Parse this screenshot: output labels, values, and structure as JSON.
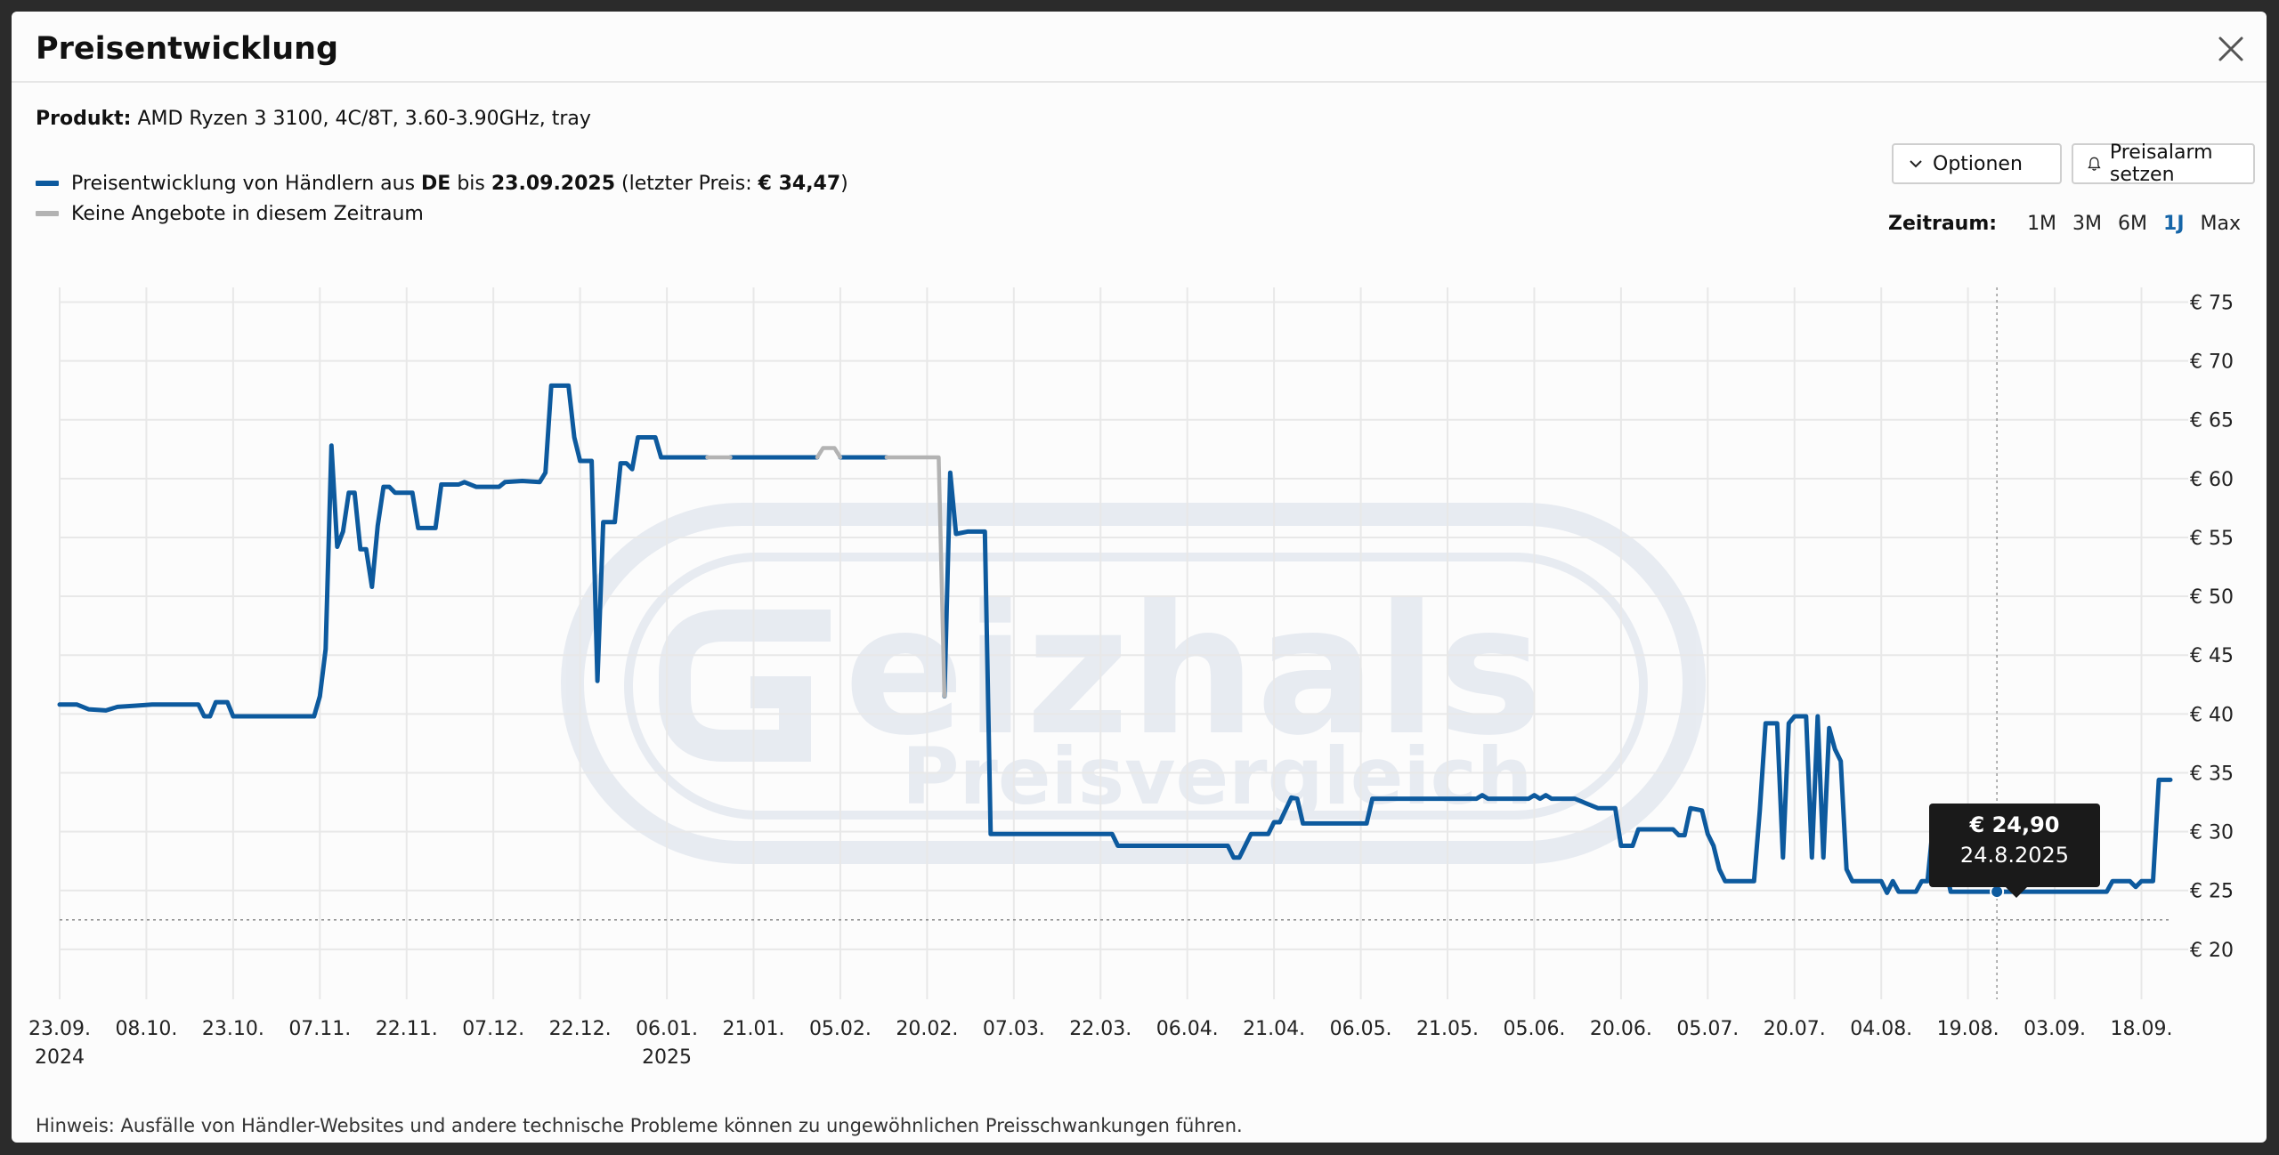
{
  "modal": {
    "title": "Preisentwicklung",
    "close_icon": "close-icon"
  },
  "product": {
    "label": "Produkt:",
    "name": "AMD Ryzen 3 3100, 4C/8T, 3.60-3.90GHz, tray"
  },
  "legend": {
    "series_text_1": "Preisentwicklung von Händlern aus ",
    "series_country": "DE",
    "series_text_2": " bis ",
    "series_date": "23.09.2025",
    "series_text_3": " (letzter Preis: ",
    "series_price": "€ 34,47",
    "series_text_4": ")",
    "gap_text": "Keine Angebote in diesem Zeitraum"
  },
  "buttons": {
    "options_label": "Optionen",
    "options_icon": "chevron-down-icon",
    "alarm_label": "Preisalarm setzen",
    "alarm_icon": "bell-icon"
  },
  "range": {
    "label": "Zeitraum:",
    "options": [
      "1M",
      "3M",
      "6M",
      "1J",
      "Max"
    ],
    "active": "1J"
  },
  "tooltip": {
    "price": "€ 24,90",
    "date": "24.8.2025"
  },
  "hint": "Hinweis: Ausfälle von Händler-Websites und andere technische Probleme können zu ungewöhnlichen Preisschwankungen führen.",
  "colors": {
    "series": "#0d5a9e",
    "gap": "#b3b3b3",
    "range_active": "#1565a8"
  },
  "chart_data": {
    "type": "line",
    "x_range": [
      "2024-09-23",
      "2025-09-23"
    ],
    "ylim": [
      15,
      77
    ],
    "grid": true,
    "y_ticks": [
      20,
      25,
      30,
      35,
      40,
      45,
      50,
      55,
      60,
      65,
      70,
      75
    ],
    "y_tick_labels": [
      "€ 20",
      "€ 25",
      "€ 30",
      "€ 35",
      "€ 40",
      "€ 45",
      "€ 50",
      "€ 55",
      "€ 60",
      "€ 65",
      "€ 70",
      "€ 75"
    ],
    "x_ticks": [
      {
        "date": "2024-09-23",
        "label": "23.09.",
        "year": "2024"
      },
      {
        "date": "2024-10-08",
        "label": "08.10.",
        "year": ""
      },
      {
        "date": "2024-10-23",
        "label": "23.10.",
        "year": ""
      },
      {
        "date": "2024-11-07",
        "label": "07.11.",
        "year": ""
      },
      {
        "date": "2024-11-22",
        "label": "22.11.",
        "year": ""
      },
      {
        "date": "2024-12-07",
        "label": "07.12.",
        "year": ""
      },
      {
        "date": "2024-12-22",
        "label": "22.12.",
        "year": ""
      },
      {
        "date": "2025-01-06",
        "label": "06.01.",
        "year": "2025"
      },
      {
        "date": "2025-01-21",
        "label": "21.01.",
        "year": ""
      },
      {
        "date": "2025-02-05",
        "label": "05.02.",
        "year": ""
      },
      {
        "date": "2025-02-20",
        "label": "20.02.",
        "year": ""
      },
      {
        "date": "2025-03-07",
        "label": "07.03.",
        "year": ""
      },
      {
        "date": "2025-03-22",
        "label": "22.03.",
        "year": ""
      },
      {
        "date": "2025-04-06",
        "label": "06.04.",
        "year": ""
      },
      {
        "date": "2025-04-21",
        "label": "21.04.",
        "year": ""
      },
      {
        "date": "2025-05-06",
        "label": "06.05.",
        "year": ""
      },
      {
        "date": "2025-05-21",
        "label": "21.05.",
        "year": ""
      },
      {
        "date": "2025-06-05",
        "label": "05.06.",
        "year": ""
      },
      {
        "date": "2025-06-20",
        "label": "20.06.",
        "year": ""
      },
      {
        "date": "2025-07-05",
        "label": "05.07.",
        "year": ""
      },
      {
        "date": "2025-07-20",
        "label": "20.07.",
        "year": ""
      },
      {
        "date": "2025-08-04",
        "label": "04.08.",
        "year": ""
      },
      {
        "date": "2025-08-19",
        "label": "19.08.",
        "year": ""
      },
      {
        "date": "2025-09-03",
        "label": "03.09.",
        "year": ""
      },
      {
        "date": "2025-09-18",
        "label": "18.09.",
        "year": ""
      }
    ],
    "reference_line": {
      "y": 22.5,
      "style": "dotted"
    },
    "highlight": {
      "date": "2025-08-24",
      "y": 24.9
    },
    "series": [
      {
        "name": "DE",
        "color": "#0d5a9e",
        "segments": [
          [
            [
              "2024-09-23",
              40.8
            ],
            [
              "2024-09-26",
              40.8
            ],
            [
              "2024-09-28",
              40.4
            ],
            [
              "2024-10-01",
              40.3
            ],
            [
              "2024-10-03",
              40.6
            ],
            [
              "2024-10-06",
              40.7
            ],
            [
              "2024-10-09",
              40.8
            ],
            [
              "2024-10-17",
              40.8
            ],
            [
              "2024-10-18",
              39.8
            ],
            [
              "2024-10-19",
              39.8
            ],
            [
              "2024-10-20",
              41.0
            ],
            [
              "2024-10-22",
              41.0
            ],
            [
              "2024-10-23",
              39.8
            ],
            [
              "2024-11-06",
              39.8
            ],
            [
              "2024-11-07",
              41.5
            ],
            [
              "2024-11-08",
              45.5
            ],
            [
              "2024-11-09",
              62.8
            ],
            [
              "2024-11-10",
              54.2
            ],
            [
              "2024-11-11",
              55.5
            ],
            [
              "2024-11-12",
              58.8
            ],
            [
              "2024-11-13",
              58.8
            ],
            [
              "2024-11-14",
              54.0
            ],
            [
              "2024-11-15",
              54.0
            ],
            [
              "2024-11-16",
              50.8
            ],
            [
              "2024-11-17",
              56.0
            ],
            [
              "2024-11-18",
              59.3
            ],
            [
              "2024-11-19",
              59.3
            ],
            [
              "2024-11-20",
              58.8
            ],
            [
              "2024-11-23",
              58.8
            ],
            [
              "2024-11-24",
              55.8
            ],
            [
              "2024-11-27",
              55.8
            ],
            [
              "2024-11-28",
              59.5
            ],
            [
              "2024-12-01",
              59.5
            ],
            [
              "2024-12-02",
              59.7
            ],
            [
              "2024-12-04",
              59.3
            ],
            [
              "2024-12-08",
              59.3
            ],
            [
              "2024-12-09",
              59.7
            ],
            [
              "2024-12-12",
              59.8
            ],
            [
              "2024-12-15",
              59.7
            ],
            [
              "2024-12-16",
              60.5
            ],
            [
              "2024-12-17",
              67.9
            ],
            [
              "2024-12-20",
              67.9
            ],
            [
              "2024-12-21",
              63.5
            ],
            [
              "2024-12-22",
              61.5
            ],
            [
              "2024-12-24",
              61.5
            ],
            [
              "2024-12-25",
              42.8
            ],
            [
              "2024-12-26",
              56.3
            ],
            [
              "2024-12-28",
              56.3
            ],
            [
              "2024-12-29",
              61.3
            ],
            [
              "2024-12-30",
              61.3
            ],
            [
              "2024-12-31",
              60.8
            ],
            [
              "2025-01-01",
              63.5
            ],
            [
              "2025-01-04",
              63.5
            ],
            [
              "2025-01-05",
              61.8
            ],
            [
              "2025-01-13",
              61.8
            ]
          ],
          [
            [
              "2025-01-17",
              61.8
            ],
            [
              "2025-02-01",
              61.8
            ]
          ],
          [
            [
              "2025-02-05",
              61.8
            ],
            [
              "2025-02-13",
              61.8
            ]
          ],
          [
            [
              "2025-02-23",
              41.5
            ],
            [
              "2025-02-24",
              60.5
            ],
            [
              "2025-02-25",
              55.3
            ],
            [
              "2025-02-27",
              55.5
            ],
            [
              "2025-03-02",
              55.5
            ],
            [
              "2025-03-03",
              29.8
            ],
            [
              "2025-03-24",
              29.8
            ],
            [
              "2025-03-25",
              28.8
            ],
            [
              "2025-04-13",
              28.8
            ],
            [
              "2025-04-14",
              27.8
            ],
            [
              "2025-04-15",
              27.8
            ],
            [
              "2025-04-17",
              29.8
            ],
            [
              "2025-04-20",
              29.8
            ],
            [
              "2025-04-21",
              30.8
            ],
            [
              "2025-04-22",
              30.8
            ],
            [
              "2025-04-24",
              32.9
            ],
            [
              "2025-04-25",
              32.8
            ],
            [
              "2025-04-26",
              30.7
            ],
            [
              "2025-05-07",
              30.7
            ],
            [
              "2025-05-08",
              32.8
            ],
            [
              "2025-05-26",
              32.8
            ],
            [
              "2025-05-27",
              33.1
            ],
            [
              "2025-05-28",
              32.8
            ],
            [
              "2025-06-04",
              32.8
            ],
            [
              "2025-06-05",
              33.1
            ],
            [
              "2025-06-06",
              32.8
            ],
            [
              "2025-06-07",
              33.1
            ],
            [
              "2025-06-08",
              32.8
            ],
            [
              "2025-06-12",
              32.8
            ],
            [
              "2025-06-14",
              32.4
            ],
            [
              "2025-06-16",
              32.0
            ],
            [
              "2025-06-19",
              32.0
            ],
            [
              "2025-06-20",
              28.8
            ],
            [
              "2025-06-22",
              28.8
            ],
            [
              "2025-06-23",
              30.2
            ],
            [
              "2025-06-29",
              30.2
            ],
            [
              "2025-06-30",
              29.7
            ],
            [
              "2025-07-01",
              29.7
            ],
            [
              "2025-07-02",
              32.0
            ],
            [
              "2025-07-04",
              31.8
            ],
            [
              "2025-07-05",
              29.8
            ],
            [
              "2025-07-06",
              28.8
            ],
            [
              "2025-07-07",
              26.8
            ],
            [
              "2025-07-08",
              25.8
            ],
            [
              "2025-07-13",
              25.8
            ],
            [
              "2025-07-14",
              31.8
            ],
            [
              "2025-07-15",
              39.2
            ],
            [
              "2025-07-17",
              39.2
            ],
            [
              "2025-07-18",
              27.8
            ],
            [
              "2025-07-19",
              39.2
            ],
            [
              "2025-07-20",
              39.8
            ],
            [
              "2025-07-22",
              39.8
            ],
            [
              "2025-07-23",
              27.8
            ],
            [
              "2025-07-24",
              39.8
            ],
            [
              "2025-07-25",
              27.8
            ],
            [
              "2025-07-26",
              38.8
            ],
            [
              "2025-07-27",
              37.0
            ],
            [
              "2025-07-28",
              36.0
            ],
            [
              "2025-07-29",
              26.8
            ],
            [
              "2025-07-30",
              25.8
            ],
            [
              "2025-08-04",
              25.8
            ],
            [
              "2025-08-05",
              24.8
            ],
            [
              "2025-08-06",
              25.8
            ],
            [
              "2025-08-07",
              24.9
            ],
            [
              "2025-08-10",
              24.9
            ],
            [
              "2025-08-11",
              25.8
            ],
            [
              "2025-08-12",
              25.8
            ],
            [
              "2025-08-13",
              30.8
            ],
            [
              "2025-08-14",
              29.5
            ],
            [
              "2025-08-16",
              24.9
            ],
            [
              "2025-09-12",
              24.9
            ],
            [
              "2025-09-13",
              25.8
            ],
            [
              "2025-09-16",
              25.8
            ],
            [
              "2025-09-17",
              25.3
            ],
            [
              "2025-09-18",
              25.8
            ],
            [
              "2025-09-20",
              25.8
            ],
            [
              "2025-09-21",
              34.4
            ],
            [
              "2025-09-23",
              34.4
            ]
          ]
        ]
      },
      {
        "name": "Keine Angebote",
        "color": "#b3b3b3",
        "segments": [
          [
            [
              "2025-01-13",
              61.8
            ],
            [
              "2025-01-17",
              61.8
            ]
          ],
          [
            [
              "2025-02-01",
              61.8
            ],
            [
              "2025-02-02",
              62.6
            ],
            [
              "2025-02-04",
              62.6
            ],
            [
              "2025-02-05",
              61.8
            ]
          ],
          [
            [
              "2025-02-13",
              61.8
            ],
            [
              "2025-02-22",
              61.8
            ],
            [
              "2025-02-23",
              41.5
            ]
          ]
        ]
      }
    ]
  }
}
